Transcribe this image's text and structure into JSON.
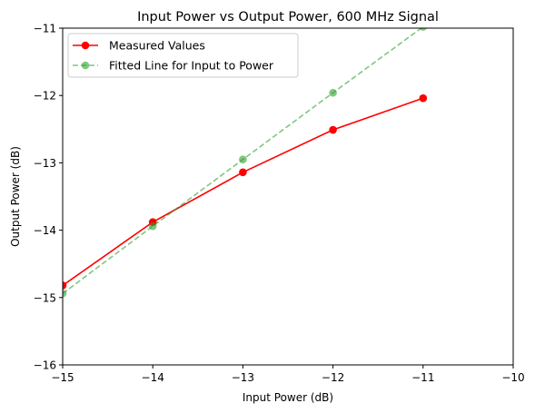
{
  "chart_data": {
    "type": "line",
    "title": "Input Power vs Output Power, 600 MHz Signal",
    "xlabel": "Input Power (dB)",
    "ylabel": "Output Power (dB)",
    "xlim": [
      -15,
      -10
    ],
    "ylim": [
      -16,
      -11
    ],
    "xticks": [
      -15,
      -14,
      -13,
      -12,
      -11,
      -10
    ],
    "yticks": [
      -16,
      -15,
      -14,
      -13,
      -12,
      -11
    ],
    "xtick_labels": [
      "−15",
      "−14",
      "−13",
      "−12",
      "−11",
      "−10"
    ],
    "ytick_labels": [
      "−16",
      "−15",
      "−14",
      "−13",
      "−12",
      "−11"
    ],
    "grid": false,
    "legend_position": "top-left",
    "series": [
      {
        "name": "Measured Values",
        "color": "#ff0000",
        "style": "solid",
        "marker": "circle",
        "x": [
          -15,
          -14,
          -13,
          -12,
          -11
        ],
        "y": [
          -14.82,
          -13.88,
          -13.14,
          -12.51,
          -12.04
        ]
      },
      {
        "name": "Fitted Line for Input to Power",
        "color": "#2ca02c",
        "style": "dashed",
        "marker": "circle",
        "opacity": 0.6,
        "x": [
          -15,
          -14,
          -13,
          -12,
          -11
        ],
        "y": [
          -14.94,
          -13.94,
          -12.95,
          -11.96,
          -10.98
        ]
      }
    ]
  }
}
